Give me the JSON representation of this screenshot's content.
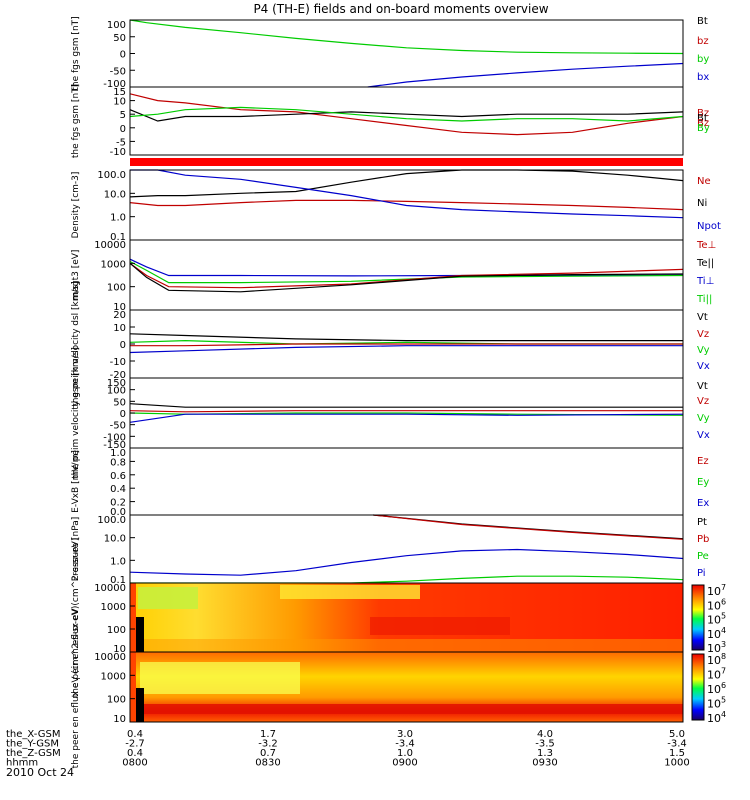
{
  "title": "P4 (TH-E) fields and on-board moments overview",
  "date_label": "2010 Oct 24",
  "ephemeris": {
    "rows": [
      {
        "label": "the_X-GSM",
        "values": [
          "0.4",
          "1.7",
          "3.0",
          "4.0",
          "5.0"
        ]
      },
      {
        "label": "the_Y-GSM",
        "values": [
          "-2.7",
          "-3.2",
          "-3.4",
          "-3.5",
          "-3.4"
        ]
      },
      {
        "label": "the_Z-GSM",
        "values": [
          "0.4",
          "0.7",
          "1.0",
          "1.3",
          "1.5"
        ]
      },
      {
        "label": "hhmm",
        "values": [
          "0800",
          "0830",
          "0900",
          "0930",
          "1000"
        ]
      }
    ]
  },
  "colors": {
    "black": "#000000",
    "red": "#c00000",
    "green": "#00cc00",
    "blue": "#0000cc"
  },
  "chart_data": [
    {
      "type": "line",
      "ylabel": "the fgs gsm [nT]",
      "ylim": [
        -100,
        100
      ],
      "yticks": [
        "100",
        "50",
        "0",
        "-50",
        "-100"
      ],
      "legend": [
        {
          "name": "Bt",
          "color": "#000000"
        },
        {
          "name": "bz",
          "color": "#c00000"
        },
        {
          "name": "by",
          "color": "#00cc00"
        },
        {
          "name": "bx",
          "color": "#0000cc"
        }
      ],
      "series": [
        {
          "name": "by",
          "color": "#00cc00",
          "x": [
            0.0,
            0.03,
            0.1,
            0.2,
            0.3,
            0.4,
            0.5,
            0.6,
            0.7,
            0.8,
            0.9,
            1.0
          ],
          "y": [
            100,
            92,
            78,
            62,
            45,
            30,
            17,
            9,
            4,
            2,
            1,
            0
          ]
        },
        {
          "name": "bx",
          "color": "#0000cc",
          "x": [
            0.43,
            0.5,
            0.6,
            0.7,
            0.8,
            0.9,
            1.0
          ],
          "y": [
            -100,
            -85,
            -70,
            -58,
            -47,
            -38,
            -30
          ]
        }
      ]
    },
    {
      "type": "line",
      "ylabel": "the fgs gsm [nT]",
      "ylim": [
        -15,
        15
      ],
      "yticks": [
        "15",
        "10",
        "5",
        "0",
        "-5",
        "-10"
      ],
      "legend": [
        {
          "name": "Bz",
          "color": "#c00000"
        },
        {
          "name": "Bt",
          "color": "#000000"
        },
        {
          "name": "Bz",
          "color": "#c00000"
        },
        {
          "name": "By",
          "color": "#00cc00"
        }
      ],
      "series": [
        {
          "name": "Bz",
          "color": "#c00000",
          "x": [
            0.0,
            0.05,
            0.1,
            0.2,
            0.3,
            0.4,
            0.5,
            0.6,
            0.7,
            0.8,
            0.9,
            1.0
          ],
          "y": [
            12,
            9,
            8,
            5,
            4,
            1,
            -2,
            -5,
            -6,
            -5,
            -1,
            2
          ]
        },
        {
          "name": "Bt",
          "color": "#000000",
          "x": [
            0.0,
            0.05,
            0.1,
            0.2,
            0.3,
            0.4,
            0.5,
            0.6,
            0.7,
            0.8,
            0.9,
            1.0
          ],
          "y": [
            5,
            0,
            2,
            2,
            3,
            4,
            3,
            2,
            3,
            3,
            3,
            4
          ]
        },
        {
          "name": "By",
          "color": "#00cc00",
          "x": [
            0.0,
            0.05,
            0.1,
            0.2,
            0.3,
            0.4,
            0.5,
            0.6,
            0.7,
            0.8,
            0.9,
            1.0
          ],
          "y": [
            2,
            3,
            5,
            6,
            5,
            3,
            1,
            0,
            1,
            1,
            0,
            2
          ]
        }
      ]
    },
    {
      "type": "line",
      "ylabel": "Density [cm-3]",
      "yscale": "log",
      "ylim": [
        0.1,
        100
      ],
      "yticks": [
        "100.0",
        "10.0",
        "1.0",
        "0.1"
      ],
      "legend": [
        {
          "name": "Ne",
          "color": "#c00000"
        },
        {
          "name": "Ni",
          "color": "#000000"
        },
        {
          "name": "Npot",
          "color": "#0000cc"
        }
      ],
      "series": [
        {
          "name": "Ni",
          "color": "#000000",
          "x": [
            0.0,
            0.05,
            0.1,
            0.2,
            0.3,
            0.4,
            0.5,
            0.6,
            0.7,
            0.8,
            0.9,
            1.0
          ],
          "y": [
            7,
            8,
            8,
            10,
            12,
            30,
            70,
            100,
            110,
            90,
            60,
            35
          ]
        },
        {
          "name": "Ne",
          "color": "#c00000",
          "x": [
            0.0,
            0.05,
            0.1,
            0.2,
            0.3,
            0.4,
            0.5,
            0.6,
            0.7,
            0.8,
            0.9,
            1.0
          ],
          "y": [
            4,
            3,
            3,
            4,
            5,
            5,
            4.5,
            4,
            3.5,
            3,
            2.5,
            2
          ]
        },
        {
          "name": "Npot",
          "color": "#0000cc",
          "x": [
            0.0,
            0.05,
            0.1,
            0.2,
            0.3,
            0.4,
            0.5,
            0.6,
            0.7,
            0.8,
            0.9,
            1.0
          ],
          "y": [
            100,
            110,
            60,
            40,
            18,
            8,
            3,
            2,
            1.6,
            1.3,
            1.1,
            0.9
          ]
        }
      ]
    },
    {
      "type": "line",
      "ylabel": "magt3 [eV]",
      "yscale": "log",
      "ylim": [
        10,
        10000
      ],
      "yticks": [
        "10000",
        "1000",
        "100",
        "10"
      ],
      "legend": [
        {
          "name": "Te⊥",
          "color": "#c00000"
        },
        {
          "name": "Te||",
          "color": "#000000"
        },
        {
          "name": "Ti⊥",
          "color": "#0000cc"
        },
        {
          "name": "Ti||",
          "color": "#00cc00"
        }
      ],
      "series": [
        {
          "name": "Ti⊥",
          "color": "#0000cc",
          "x": [
            0.0,
            0.03,
            0.07,
            0.2,
            0.4,
            0.6,
            0.8,
            1.0
          ],
          "y": [
            1500,
            700,
            300,
            300,
            290,
            300,
            300,
            310
          ]
        },
        {
          "name": "Ti||",
          "color": "#00cc00",
          "x": [
            0.0,
            0.03,
            0.07,
            0.2,
            0.4,
            0.6,
            0.8,
            1.0
          ],
          "y": [
            1200,
            500,
            150,
            150,
            170,
            260,
            280,
            300
          ]
        },
        {
          "name": "Te⊥",
          "color": "#c00000",
          "x": [
            0.0,
            0.03,
            0.07,
            0.2,
            0.4,
            0.6,
            0.8,
            1.0
          ],
          "y": [
            1000,
            300,
            100,
            90,
            130,
            300,
            380,
            550
          ]
        },
        {
          "name": "Te||",
          "color": "#000000",
          "x": [
            0.0,
            0.03,
            0.07,
            0.2,
            0.4,
            0.6,
            0.8,
            1.0
          ],
          "y": [
            1000,
            250,
            70,
            60,
            120,
            280,
            330,
            350
          ]
        }
      ]
    },
    {
      "type": "line",
      "ylabel": "the peim velocity dsl [km/s]",
      "ylim": [
        -20,
        20
      ],
      "yticks": [
        "20",
        "10",
        "0",
        "-10",
        "-20"
      ],
      "legend": [
        {
          "name": "Vt",
          "color": "#000000"
        },
        {
          "name": "Vz",
          "color": "#c00000"
        },
        {
          "name": "Vy",
          "color": "#00cc00"
        },
        {
          "name": "Vx",
          "color": "#0000cc"
        }
      ],
      "series": [
        {
          "name": "Vt",
          "color": "#000000",
          "x": [
            0.0,
            0.1,
            0.3,
            0.5,
            0.7,
            1.0
          ],
          "y": [
            6,
            5,
            3,
            2,
            2,
            2
          ]
        },
        {
          "name": "Vy",
          "color": "#00cc00",
          "x": [
            0.0,
            0.1,
            0.3,
            0.5,
            0.7,
            1.0
          ],
          "y": [
            1,
            2,
            0,
            1,
            0,
            0
          ]
        },
        {
          "name": "Vz",
          "color": "#c00000",
          "x": [
            0.0,
            0.1,
            0.3,
            0.5,
            0.7,
            1.0
          ],
          "y": [
            -1,
            -1,
            0,
            0,
            0,
            0
          ]
        },
        {
          "name": "Vx",
          "color": "#0000cc",
          "x": [
            0.0,
            0.1,
            0.3,
            0.5,
            0.7,
            1.0
          ],
          "y": [
            -5,
            -4,
            -2,
            -1,
            -1,
            -1
          ]
        }
      ]
    },
    {
      "type": "line",
      "ylabel": "the peim velocity gsm [km/s]",
      "ylim": [
        -150,
        150
      ],
      "yticks": [
        "150",
        "100",
        "50",
        "0",
        "-50",
        "-100",
        "-150"
      ],
      "legend": [
        {
          "name": "Vt",
          "color": "#000000"
        },
        {
          "name": "Vz",
          "color": "#c00000"
        },
        {
          "name": "Vy",
          "color": "#00cc00"
        },
        {
          "name": "Vx",
          "color": "#0000cc"
        }
      ],
      "series": [
        {
          "name": "Vt",
          "color": "#000000",
          "x": [
            0.0,
            0.1,
            0.3,
            0.5,
            0.7,
            1.0
          ],
          "y": [
            40,
            25,
            25,
            25,
            25,
            25
          ]
        },
        {
          "name": "Vz",
          "color": "#c00000",
          "x": [
            0.0,
            0.1,
            0.3,
            0.5,
            0.7,
            1.0
          ],
          "y": [
            10,
            5,
            10,
            10,
            10,
            10
          ]
        },
        {
          "name": "Vy",
          "color": "#00cc00",
          "x": [
            0.0,
            0.1,
            0.3,
            0.5,
            0.7,
            1.0
          ],
          "y": [
            0,
            -5,
            0,
            0,
            -5,
            -10
          ]
        },
        {
          "name": "Vx",
          "color": "#0000cc",
          "x": [
            0.0,
            0.1,
            0.3,
            0.5,
            0.7,
            1.0
          ],
          "y": [
            -40,
            -5,
            -5,
            -5,
            -10,
            -5
          ]
        }
      ]
    },
    {
      "type": "line",
      "ylabel": "E-VxB [mV/m]",
      "ylim": [
        0,
        1
      ],
      "yticks": [
        "1.0",
        "0.8",
        "0.6",
        "0.4",
        "0.2",
        "0.0"
      ],
      "legend": [
        {
          "name": "Ez",
          "color": "#c00000"
        },
        {
          "name": "Ey",
          "color": "#00cc00"
        },
        {
          "name": "Ex",
          "color": "#0000cc"
        }
      ],
      "series": []
    },
    {
      "type": "line",
      "ylabel": "Pressure [nPa]",
      "yscale": "log",
      "ylim": [
        0.1,
        100
      ],
      "yticks": [
        "100.0",
        "10.0",
        "1.0",
        "0.1"
      ],
      "legend": [
        {
          "name": "Pt",
          "color": "#000000"
        },
        {
          "name": "Pb",
          "color": "#c00000"
        },
        {
          "name": "Pe",
          "color": "#00cc00"
        },
        {
          "name": "Pi",
          "color": "#0000cc"
        }
      ],
      "series": [
        {
          "name": "Pt",
          "color": "#000000",
          "x": [
            0.44,
            0.6,
            0.8,
            1.0
          ],
          "y": [
            100,
            40,
            18,
            9
          ]
        },
        {
          "name": "Pb",
          "color": "#c00000",
          "x": [
            0.44,
            0.6,
            0.8,
            1.0
          ],
          "y": [
            100,
            38,
            17,
            8.5
          ]
        },
        {
          "name": "Pi",
          "color": "#0000cc",
          "x": [
            0.0,
            0.1,
            0.2,
            0.3,
            0.4,
            0.5,
            0.6,
            0.7,
            0.8,
            0.9,
            1.0
          ],
          "y": [
            0.3,
            0.25,
            0.22,
            0.35,
            0.8,
            1.6,
            2.6,
            3.0,
            2.4,
            1.8,
            1.2
          ]
        },
        {
          "name": "Pe",
          "color": "#00cc00",
          "x": [
            0.0,
            0.2,
            0.4,
            0.5,
            0.6,
            0.7,
            0.8,
            0.9,
            1.0
          ],
          "y": [
            0.1,
            0.1,
            0.1,
            0.12,
            0.16,
            0.2,
            0.2,
            0.18,
            0.14
          ]
        }
      ]
    },
    {
      "type": "heatmap",
      "ylabel": "the peir en eflux eV (cm^2-s-sr-eV)",
      "yscale": "log",
      "ylim": [
        10,
        20000
      ],
      "yticks": [
        "10000",
        "1000",
        "100",
        "10"
      ],
      "colorbar": {
        "ticks": [
          "10",
          "10",
          "10",
          "10",
          "10"
        ],
        "exponents": [
          "7",
          "6",
          "5",
          "4",
          "3"
        ]
      }
    },
    {
      "type": "heatmap",
      "ylabel": "the peer en eflux eV (cm^2-s-sr-eV)",
      "yscale": "log",
      "ylim": [
        10,
        20000
      ],
      "yticks": [
        "10000",
        "1000",
        "100",
        "10"
      ],
      "colorbar": {
        "ticks": [
          "10",
          "10",
          "10",
          "10",
          "10"
        ],
        "exponents": [
          "8",
          "7",
          "6",
          "5",
          "4"
        ]
      }
    }
  ]
}
